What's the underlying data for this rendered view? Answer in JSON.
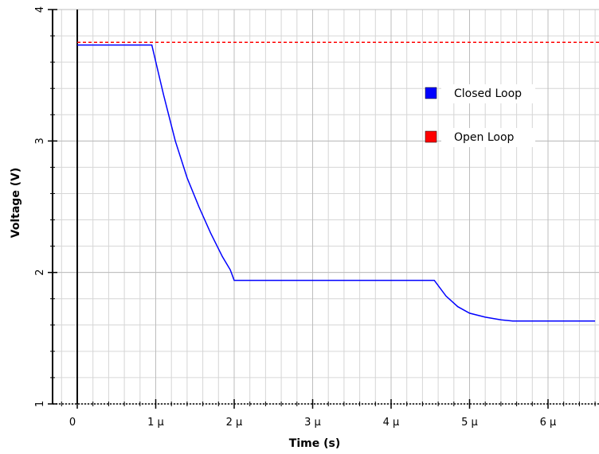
{
  "chart_data": {
    "type": "line",
    "title": "",
    "xlabel": "Time (s)",
    "ylabel": "Voltage (V)",
    "xlim": [
      -0.3,
      6.95
    ],
    "ylim": [
      1,
      4
    ],
    "x_ticks": [
      {
        "value": 0,
        "label": "0"
      },
      {
        "value": 1,
        "label": "1 µ"
      },
      {
        "value": 2,
        "label": "2 µ"
      },
      {
        "value": 3,
        "label": "3 µ"
      },
      {
        "value": 4,
        "label": "4 µ"
      },
      {
        "value": 5,
        "label": "5 µ"
      },
      {
        "value": 6,
        "label": "6 µ"
      }
    ],
    "y_ticks": [
      {
        "value": 1,
        "label": "1"
      },
      {
        "value": 2,
        "label": "2"
      },
      {
        "value": 3,
        "label": "3"
      },
      {
        "value": 4,
        "label": "4"
      }
    ],
    "grid": true,
    "legend_position": "right",
    "series": [
      {
        "name": "Closed Loop",
        "color": "#0000ff",
        "style": "solid",
        "x": [
          0,
          0.95,
          1.1,
          1.25,
          1.4,
          1.55,
          1.7,
          1.85,
          1.95,
          2.0,
          3.0,
          4.0,
          4.55,
          4.7,
          4.85,
          5.0,
          5.2,
          5.4,
          5.55,
          6.0,
          6.6
        ],
        "y": [
          3.73,
          3.73,
          3.35,
          3.0,
          2.72,
          2.5,
          2.3,
          2.12,
          2.02,
          1.94,
          1.94,
          1.94,
          1.94,
          1.82,
          1.74,
          1.69,
          1.66,
          1.64,
          1.63,
          1.63,
          1.63
        ]
      },
      {
        "name": "Open Loop",
        "color": "#ff0000",
        "style": "dashed",
        "x": [
          0,
          6.95
        ],
        "y": [
          3.75,
          3.75
        ]
      }
    ]
  }
}
